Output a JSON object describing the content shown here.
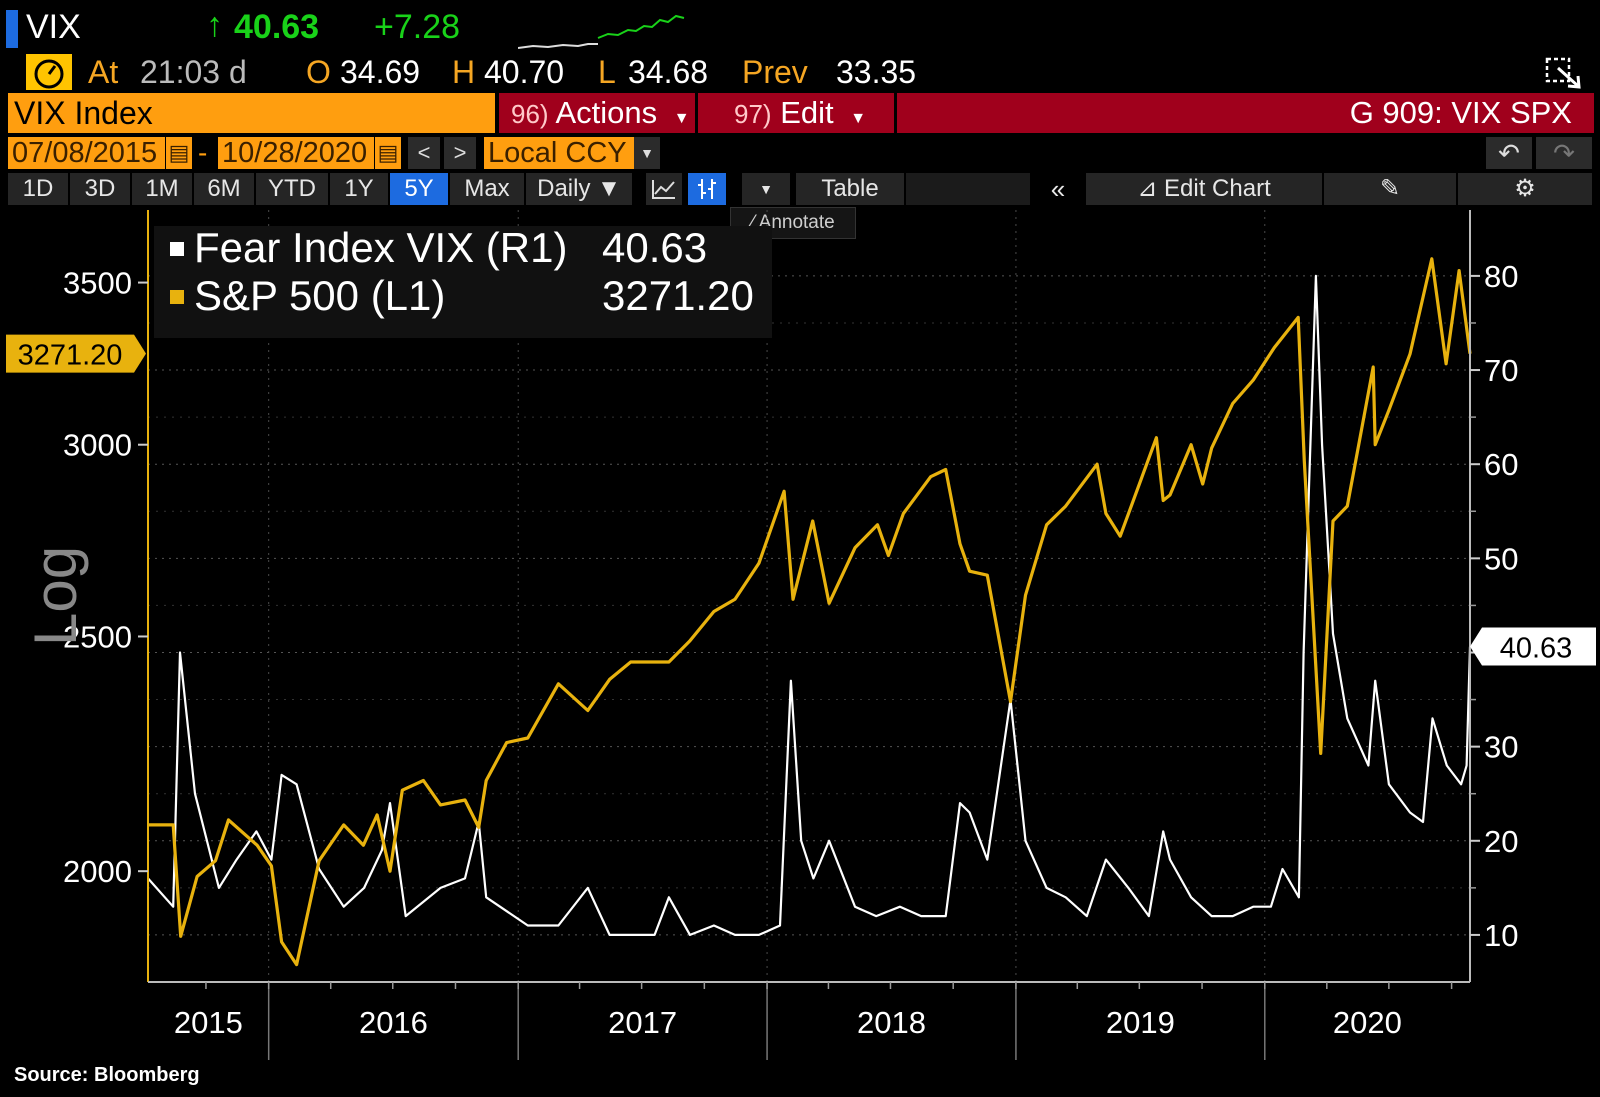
{
  "header": {
    "ticker": "VIX",
    "last": "40.63",
    "change": "+7.28",
    "at_label": "At",
    "time": "21:03 d",
    "open_label": "O",
    "open": "34.69",
    "high_label": "H",
    "high": "40.70",
    "low_label": "L",
    "low": "34.68",
    "prev_label": "Prev",
    "prev": "33.35"
  },
  "titlebar": {
    "security": "VIX Index",
    "actions_num": "96)",
    "actions_label": "Actions",
    "edit_num": "97)",
    "edit_label": "Edit",
    "function": "G 909: VIX SPX"
  },
  "daterow": {
    "start": "07/08/2015",
    "dash": "-",
    "end": "10/28/2020",
    "currency": "Local CCY"
  },
  "toolbar": {
    "ranges": [
      "1D",
      "3D",
      "1M",
      "6M",
      "YTD",
      "1Y",
      "5Y",
      "Max"
    ],
    "selected_range": "5Y",
    "frequency": "Daily",
    "table_label": "Table",
    "edit_chart_label": "Edit Chart",
    "annotate_label": "Annotate",
    "colors": {
      "selected": "#1d6be0",
      "button": "#252525"
    }
  },
  "chart_data": {
    "type": "line",
    "left_axis_label": "Log",
    "left_scale": "log",
    "left_ticks": [
      2000,
      2500,
      3000,
      3500
    ],
    "left_ylim": [
      1800,
      3750
    ],
    "right_ticks": [
      10,
      20,
      30,
      40,
      50,
      60,
      70,
      80
    ],
    "right_ylim": [
      5,
      87
    ],
    "x_ticks": [
      "2015",
      "2016",
      "2017",
      "2018",
      "2019",
      "2020"
    ],
    "xlim": [
      "2015-07-08",
      "2020-10-28"
    ],
    "grid": true,
    "legend_position": "top-left",
    "series": [
      {
        "name": "Fear Index VIX (R1)",
        "axis": "right",
        "color": "#ffffff",
        "last": "40.63",
        "x": [
          "2015-07-08",
          "2015-08-14",
          "2015-08-24",
          "2015-09-15",
          "2015-10-20",
          "2015-11-15",
          "2015-12-14",
          "2016-01-05",
          "2016-01-20",
          "2016-02-11",
          "2016-03-15",
          "2016-04-20",
          "2016-05-20",
          "2016-06-15",
          "2016-06-27",
          "2016-07-20",
          "2016-09-09",
          "2016-10-15",
          "2016-11-04",
          "2016-11-15",
          "2017-01-15",
          "2017-03-01",
          "2017-04-13",
          "2017-05-15",
          "2017-06-15",
          "2017-07-20",
          "2017-08-10",
          "2017-09-10",
          "2017-10-15",
          "2017-11-15",
          "2017-12-20",
          "2018-01-20",
          "2018-02-05",
          "2018-02-20",
          "2018-03-10",
          "2018-04-02",
          "2018-05-10",
          "2018-06-10",
          "2018-07-15",
          "2018-08-15",
          "2018-09-20",
          "2018-10-11",
          "2018-10-25",
          "2018-11-20",
          "2018-12-24",
          "2019-01-15",
          "2019-02-15",
          "2019-03-15",
          "2019-04-15",
          "2019-05-13",
          "2019-06-15",
          "2019-07-15",
          "2019-08-05",
          "2019-08-15",
          "2019-09-15",
          "2019-10-15",
          "2019-11-15",
          "2019-12-15",
          "2020-01-10",
          "2020-01-27",
          "2020-02-20",
          "2020-02-27",
          "2020-03-16",
          "2020-03-25",
          "2020-04-10",
          "2020-05-01",
          "2020-06-01",
          "2020-06-11",
          "2020-07-01",
          "2020-08-01",
          "2020-08-20",
          "2020-09-03",
          "2020-09-24",
          "2020-10-15",
          "2020-10-23",
          "2020-10-28"
        ],
        "values": [
          16,
          13,
          40,
          25,
          15,
          18,
          21,
          18,
          27,
          26,
          17,
          13,
          15,
          19,
          24,
          12,
          15,
          16,
          22,
          14,
          11,
          11,
          15,
          10,
          10,
          10,
          14,
          10,
          11,
          10,
          10,
          11,
          37,
          20,
          16,
          20,
          13,
          12,
          13,
          12,
          12,
          24,
          23,
          18,
          35,
          20,
          15,
          14,
          12,
          18,
          15,
          12,
          21,
          18,
          14,
          12,
          12,
          13,
          13,
          17,
          14,
          40,
          80,
          62,
          42,
          33,
          28,
          37,
          26,
          23,
          22,
          33,
          28,
          26,
          28,
          40.63
        ]
      },
      {
        "name": "S&P 500 (L1)",
        "axis": "left",
        "color": "#e8b20e",
        "last": "3271.20",
        "x": [
          "2015-07-08",
          "2015-08-14",
          "2015-08-25",
          "2015-09-18",
          "2015-10-15",
          "2015-11-03",
          "2015-12-15",
          "2016-01-05",
          "2016-01-20",
          "2016-02-11",
          "2016-03-15",
          "2016-04-20",
          "2016-05-19",
          "2016-06-08",
          "2016-06-27",
          "2016-07-15",
          "2016-08-15",
          "2016-09-09",
          "2016-10-15",
          "2016-11-04",
          "2016-11-15",
          "2016-12-15",
          "2017-01-15",
          "2017-03-01",
          "2017-04-13",
          "2017-05-15",
          "2017-06-15",
          "2017-08-10",
          "2017-09-10",
          "2017-10-15",
          "2017-11-15",
          "2017-12-20",
          "2018-01-26",
          "2018-02-08",
          "2018-03-09",
          "2018-04-02",
          "2018-05-10",
          "2018-06-12",
          "2018-06-28",
          "2018-07-20",
          "2018-08-29",
          "2018-09-20",
          "2018-10-11",
          "2018-10-25",
          "2018-11-20",
          "2018-12-24",
          "2019-01-15",
          "2019-02-15",
          "2019-03-15",
          "2019-04-30",
          "2019-05-13",
          "2019-06-03",
          "2019-07-26",
          "2019-08-05",
          "2019-08-15",
          "2019-09-15",
          "2019-10-02",
          "2019-10-15",
          "2019-11-15",
          "2019-12-15",
          "2020-01-15",
          "2020-02-19",
          "2020-02-28",
          "2020-03-23",
          "2020-04-10",
          "2020-05-01",
          "2020-06-08",
          "2020-06-11",
          "2020-07-01",
          "2020-08-01",
          "2020-09-02",
          "2020-09-23",
          "2020-10-12",
          "2020-10-28"
        ],
        "values": [
          2090,
          2090,
          1880,
          1990,
          2020,
          2100,
          2050,
          2010,
          1870,
          1830,
          2020,
          2090,
          2050,
          2110,
          2000,
          2160,
          2180,
          2130,
          2140,
          2085,
          2180,
          2260,
          2270,
          2390,
          2330,
          2400,
          2440,
          2440,
          2490,
          2560,
          2590,
          2680,
          2870,
          2590,
          2790,
          2580,
          2720,
          2780,
          2700,
          2810,
          2910,
          2930,
          2730,
          2660,
          2650,
          2350,
          2600,
          2780,
          2830,
          2945,
          2810,
          2750,
          3020,
          2845,
          2860,
          3000,
          2890,
          2990,
          3120,
          3190,
          3290,
          3386,
          2954,
          2237,
          2790,
          2830,
          3230,
          3000,
          3100,
          3270,
          3580,
          3240,
          3540,
          3271.2
        ]
      }
    ]
  },
  "source": "Source:  Bloomberg"
}
